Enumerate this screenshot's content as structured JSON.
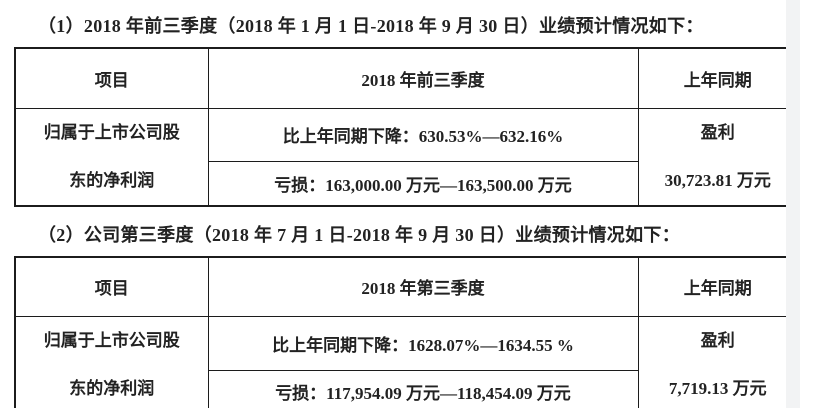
{
  "page": {
    "colors": {
      "bg": "#ffffff",
      "edge": "#f2f3f4",
      "border": "#1c1c1c",
      "text": "#222222"
    }
  },
  "sections": [
    {
      "heading": "（1）2018 年前三季度（2018 年 1 月 1 日-2018 年 9 月 30 日）业绩预计情况如下：",
      "table": {
        "headers": [
          "项目",
          "2018 年前三季度",
          "上年同期"
        ],
        "row": {
          "item": "归属于上市公司股东的净利润",
          "change_line": "比上年同期下降：630.53%—632.16%",
          "loss_line": "亏损：163,000.00 万元—163,500.00 万元",
          "prior_status": "盈利",
          "prior_amount": "30,723.81 万元"
        }
      }
    },
    {
      "heading": "（2）公司第三季度（2018 年 7 月 1 日-2018 年 9 月 30 日）业绩预计情况如下：",
      "table": {
        "headers": [
          "项目",
          "2018 年第三季度",
          "上年同期"
        ],
        "row": {
          "item": "归属于上市公司股东的净利润",
          "change_line": "比上年同期下降：1628.07%—1634.55 %",
          "loss_line": "亏损：117,954.09 万元—118,454.09 万元",
          "prior_status": "盈利",
          "prior_amount": "7,719.13 万元"
        }
      }
    }
  ]
}
